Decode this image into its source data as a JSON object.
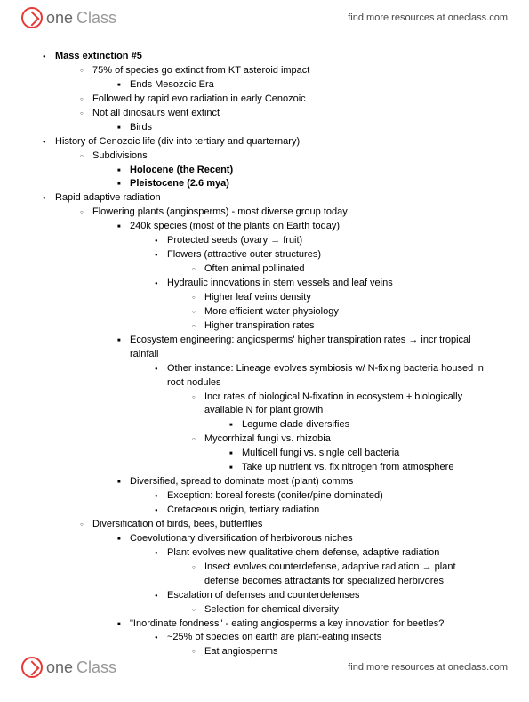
{
  "header": {
    "logo_one": "one",
    "logo_class": "Class",
    "find_more": "find more resources at oneclass.com"
  },
  "footer": {
    "logo_one": "one",
    "logo_class": "Class",
    "find_more": "find more resources at oneclass.com"
  },
  "doc": {
    "i0": "Mass extinction #5",
    "i0a": "75% of species go extinct from KT asteroid impact",
    "i0a1": "Ends Mesozoic Era",
    "i0b": "Followed by rapid evo radiation in early Cenozoic",
    "i0c": "Not all dinosaurs went extinct",
    "i0c1": "Birds",
    "i1": "History of Cenozoic life (div into tertiary and quarternary)",
    "i1a": "Subdivisions",
    "i1a1": "Holocene (the Recent)",
    "i1a2": "Pleistocene (2.6 mya)",
    "i2": "Rapid adaptive radiation",
    "i2a": "Flowering plants (angiosperms) - most diverse group today",
    "i2a1": "240k species (most of the plants on Earth today)",
    "i2a1a": "Protected seeds (ovary → fruit)",
    "i2a1b": "Flowers (attractive outer structures)",
    "i2a1b1": "Often animal pollinated",
    "i2a1c": "Hydraulic innovations in stem vessels and leaf veins",
    "i2a1c1": "Higher leaf veins density",
    "i2a1c2": "More efficient water physiology",
    "i2a1c3": "Higher transpiration rates",
    "i2a2": "Ecosystem engineering: angiosperms' higher transpiration rates → incr tropical rainfall",
    "i2a2a": "Other instance: Lineage evolves symbiosis w/ N-fixing bacteria housed in root nodules",
    "i2a2a1": "Incr rates of biological N-fixation in ecosystem + biologically available N for plant growth",
    "i2a2a1a": "Legume clade diversifies",
    "i2a2a2": "Mycorrhizal fungi vs. rhizobia",
    "i2a2a2a": "Multicell fungi vs. single cell bacteria",
    "i2a2a2b": "Take up nutrient vs. fix nitrogen from atmosphere",
    "i2a3": "Diversified, spread to dominate most (plant) comms",
    "i2a3a": "Exception: boreal forests (conifer/pine dominated)",
    "i2a3b": "Cretaceous origin, tertiary radiation",
    "i2b": "Diversification of birds, bees, butterflies",
    "i2b1": "Coevolutionary diversification of herbivorous niches",
    "i2b1a": "Plant evolves new qualitative chem defense, adaptive radiation",
    "i2b1a1": "Insect evolves counterdefense, adaptive radiation → plant defense becomes attractants for specialized herbivores",
    "i2b1b": "Escalation of defenses and counterdefenses",
    "i2b1b1": "Selection for chemical diversity",
    "i2b2": "\"Inordinate fondness\" - eating angiosperms a key innovation for beetles?",
    "i2b2a": "~25% of species on earth are plant-eating insects",
    "i2b2a1": "Eat angiosperms"
  }
}
